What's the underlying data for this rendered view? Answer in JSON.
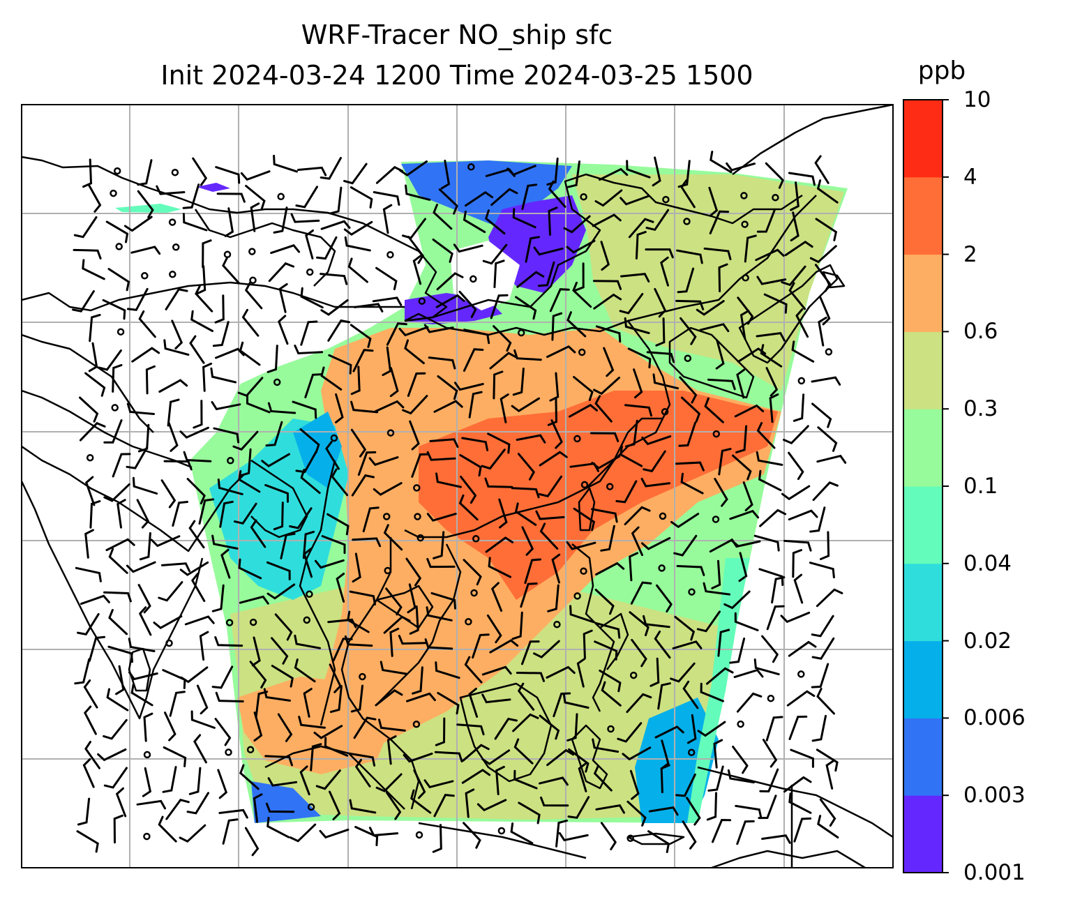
{
  "title": {
    "line1": "WRF-Tracer NO_ship sfc",
    "line2": "Init 2024-03-24 1200 Time 2024-03-25 1500"
  },
  "colorbar": {
    "unit": "ppb",
    "levels": [
      "0.001",
      "0.003",
      "0.006",
      "0.02",
      "0.04",
      "0.1",
      "0.3",
      "0.6",
      "2",
      "4",
      "10"
    ],
    "colors": [
      "#6428ff",
      "#3173f5",
      "#05b0ea",
      "#2fdedc",
      "#64fcba",
      "#97fb9b",
      "#cce182",
      "#feae62",
      "#ff6e37",
      "#ff2c15"
    ]
  },
  "map": {
    "background": "#ffffff",
    "coastline_color": "#000000",
    "gridline_color": "#b0b0b0",
    "layers": [
      "tracer-concentration-field",
      "coastlines",
      "gridlines",
      "wind-barbs"
    ]
  }
}
